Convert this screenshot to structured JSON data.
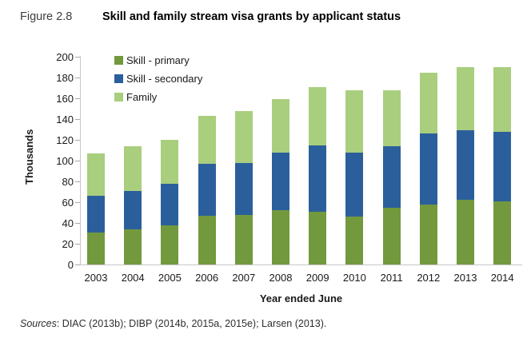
{
  "header": {
    "figure_label": "Figure 2.8",
    "title": "Skill and family stream visa grants by applicant status"
  },
  "chart_data": {
    "type": "bar",
    "stacked": true,
    "title": "",
    "xlabel": "Year ended June",
    "ylabel": "Thousands",
    "ylim": [
      0,
      200
    ],
    "ytick_step": 20,
    "grid": false,
    "legend_position": "top-left",
    "categories": [
      "2003",
      "2004",
      "2005",
      "2006",
      "2007",
      "2008",
      "2009",
      "2010",
      "2011",
      "2012",
      "2013",
      "2014"
    ],
    "series": [
      {
        "name": "Skill - primary",
        "color": "#72993D",
        "values": [
          31,
          34,
          38,
          47,
          48,
          52,
          51,
          46,
          55,
          58,
          62,
          61
        ]
      },
      {
        "name": "Skill - secondary",
        "color": "#2B5F9C",
        "values": [
          35,
          37,
          40,
          50,
          50,
          56,
          64,
          62,
          59,
          68,
          67,
          67
        ]
      },
      {
        "name": "Family",
        "color": "#A9CE7E",
        "values": [
          41,
          43,
          42,
          46,
          50,
          51,
          56,
          60,
          54,
          59,
          61,
          62
        ]
      }
    ]
  },
  "colors": {
    "axis_line": "#c8c8c8",
    "tick_mark": "#a8a8a8",
    "text": "#1a1a1a"
  },
  "footer": {
    "sources_label": "Sources",
    "sources_rest": ": DIAC (2013b); DIBP (2014b, 2015a, 2015e); Larsen (2013)."
  }
}
